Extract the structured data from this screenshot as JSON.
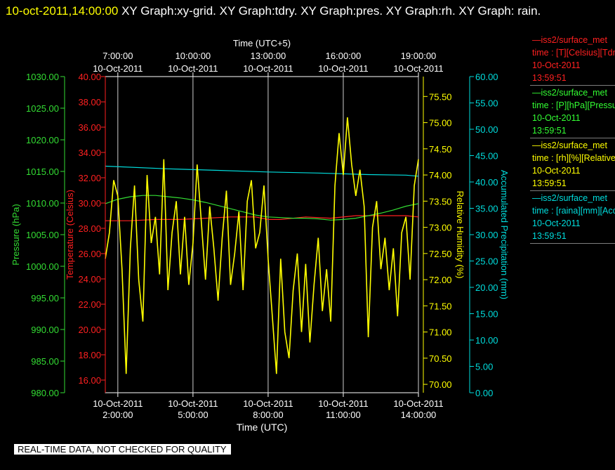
{
  "title": {
    "timestamp": "10-oct-2011,14:00:00",
    "text": " XY Graph:xy-grid.  XY Graph:tdry.  XY Graph:pres.  XY Graph:rh.  XY Graph: rain."
  },
  "legend": [
    {
      "line1": "—iss2/surface_met",
      "line2": "time : [T][Celsius][Tdry]",
      "line3": "10-Oct-2011",
      "line4": "13:59:51",
      "color": "#ff2020"
    },
    {
      "line1": "—iss2/surface_met",
      "line2": "time : [P][hPa][Pressure]",
      "line3": "10-Oct-2011",
      "line4": "13:59:51",
      "color": "#33ff33"
    },
    {
      "line1": "—iss2/surface_met",
      "line2": "time : [rh][%][Relative]",
      "line3": "10-Oct-2011",
      "line4": "13:59:51",
      "color": "#ffff00"
    },
    {
      "line1": "—iss2/surface_met",
      "line2": "time : [raina][mm][Accum]",
      "line3": "10-Oct-2011",
      "line4": "13:59:51",
      "color": "#00dddd"
    }
  ],
  "notice": "REAL-TIME DATA, NOT CHECKED FOR QUALITY",
  "chart_data": {
    "type": "line",
    "x_range_utc": [
      "10-Oct-2011 01:30:00",
      "10-Oct-2011 14:00:00"
    ],
    "grid": true,
    "bottom_axis": {
      "label": "Time (UTC)",
      "ticks": [
        {
          "date": "10-Oct-2011",
          "time": "2:00:00"
        },
        {
          "date": "10-Oct-2011",
          "time": "5:00:00"
        },
        {
          "date": "10-Oct-2011",
          "time": "8:00:00"
        },
        {
          "date": "10-Oct-2011",
          "time": "11:00:00"
        },
        {
          "date": "10-Oct-2011",
          "time": "14:00:00"
        }
      ]
    },
    "top_axis": {
      "label": "Time (UTC+5)",
      "ticks": [
        {
          "time": "7:00:00",
          "date": "10-Oct-2011"
        },
        {
          "time": "10:00:00",
          "date": "10-Oct-2011"
        },
        {
          "time": "13:00:00",
          "date": "10-Oct-2011"
        },
        {
          "time": "16:00:00",
          "date": "10-Oct-2011"
        },
        {
          "time": "19:00:00",
          "date": "10-Oct-2011"
        }
      ]
    },
    "y_axes": [
      {
        "id": "pres",
        "label": "Pressure (hPa)",
        "color": "#33dd33",
        "range": [
          980,
          1030
        ],
        "ticks": [
          "980.00",
          "985.00",
          "990.00",
          "995.00",
          "1000.00",
          "1005.00",
          "1010.00",
          "1015.00",
          "1020.00",
          "1025.00",
          "1030.00"
        ]
      },
      {
        "id": "tdry",
        "label": "Temperature (Celsius)",
        "color": "#ff2020",
        "range": [
          15,
          40
        ],
        "ticks": [
          "16.00",
          "18.00",
          "20.00",
          "22.00",
          "24.00",
          "26.00",
          "28.00",
          "30.00",
          "32.00",
          "34.00",
          "36.00",
          "38.00",
          "40.00"
        ]
      },
      {
        "id": "rh",
        "label": "Relative Humidity (%)",
        "color": "#ffff00",
        "range": [
          69.84,
          75.88
        ],
        "ticks": [
          "70.00",
          "70.50",
          "71.00",
          "71.50",
          "72.00",
          "72.50",
          "73.00",
          "73.50",
          "74.00",
          "74.50",
          "75.00",
          "75.50"
        ]
      },
      {
        "id": "rain",
        "label": "Accumulated Precipitation (mm)",
        "color": "#00dddd",
        "range": [
          0,
          60
        ],
        "ticks": [
          "0.00",
          "5.00",
          "10.00",
          "15.00",
          "20.00",
          "25.00",
          "30.00",
          "35.00",
          "40.00",
          "45.00",
          "50.00",
          "55.00",
          "60.00"
        ]
      }
    ],
    "series": [
      {
        "name": "Tdry",
        "axis": "tdry",
        "color": "#ff2020",
        "x": [
          "01:30",
          "02:30",
          "03:30",
          "04:30",
          "05:30",
          "06:30",
          "07:30",
          "08:00",
          "08:30",
          "09:30",
          "10:30",
          "11:30",
          "12:30",
          "13:30",
          "14:00"
        ],
        "y": [
          28.6,
          28.6,
          28.7,
          28.7,
          28.8,
          28.9,
          28.9,
          28.7,
          28.7,
          28.9,
          28.8,
          29.0,
          29.0,
          29.0,
          28.9
        ]
      },
      {
        "name": "Pressure",
        "axis": "pres",
        "color": "#33dd33",
        "x": [
          "01:30",
          "02:00",
          "02:30",
          "03:00",
          "03:30",
          "04:00",
          "04:30",
          "05:00",
          "05:30",
          "06:00",
          "06:30",
          "07:00",
          "07:30",
          "08:00",
          "08:30",
          "09:00",
          "09:30",
          "10:00",
          "10:30",
          "11:00",
          "11:30",
          "12:00",
          "12:30",
          "13:00",
          "13:30",
          "14:00"
        ],
        "y": [
          1009.9,
          1010.6,
          1011.0,
          1011.2,
          1011.2,
          1011.0,
          1010.8,
          1010.5,
          1010.1,
          1009.6,
          1009.1,
          1008.6,
          1008.1,
          1007.8,
          1007.7,
          1007.6,
          1007.6,
          1007.5,
          1007.3,
          1007.4,
          1007.6,
          1008.0,
          1008.4,
          1008.9,
          1009.5,
          1009.9
        ]
      },
      {
        "name": "Accumulated Precipitation",
        "axis": "rain",
        "color": "#00dddd",
        "x": [
          "01:30",
          "04:00",
          "06:00",
          "08:00",
          "10:00",
          "12:00",
          "13:30",
          "14:00"
        ],
        "y": [
          43.0,
          42.5,
          42.2,
          41.9,
          41.7,
          41.4,
          41.3,
          41.1
        ]
      },
      {
        "name": "Relative Humidity",
        "axis": "rh",
        "color": "#ffff00",
        "x": [
          "01:30",
          "01:40",
          "01:50",
          "02:00",
          "02:10",
          "02:20",
          "02:30",
          "02:40",
          "02:50",
          "03:00",
          "03:10",
          "03:20",
          "03:30",
          "03:40",
          "03:50",
          "04:00",
          "04:10",
          "04:20",
          "04:30",
          "04:40",
          "04:50",
          "05:00",
          "05:10",
          "05:20",
          "05:30",
          "05:40",
          "05:50",
          "06:00",
          "06:10",
          "06:20",
          "06:30",
          "06:40",
          "06:50",
          "07:00",
          "07:10",
          "07:20",
          "07:30",
          "07:40",
          "07:50",
          "08:00",
          "08:10",
          "08:20",
          "08:30",
          "08:40",
          "08:50",
          "09:00",
          "09:10",
          "09:20",
          "09:30",
          "09:40",
          "09:50",
          "10:00",
          "10:10",
          "10:20",
          "10:30",
          "10:40",
          "10:50",
          "11:00",
          "11:10",
          "11:20",
          "11:30",
          "11:40",
          "11:50",
          "12:00",
          "12:10",
          "12:20",
          "12:30",
          "12:40",
          "12:50",
          "13:00",
          "13:10",
          "13:20",
          "13:30",
          "13:40",
          "13:50",
          "14:00"
        ],
        "y": [
          72.4,
          72.9,
          73.9,
          73.6,
          72.2,
          70.2,
          72.6,
          73.8,
          72.0,
          71.2,
          74.0,
          72.7,
          73.2,
          72.1,
          74.3,
          71.8,
          72.9,
          73.5,
          72.1,
          73.2,
          71.9,
          72.7,
          74.2,
          73.1,
          72.0,
          73.4,
          72.6,
          71.6,
          72.8,
          73.7,
          71.9,
          72.5,
          73.3,
          71.8,
          73.5,
          73.9,
          72.6,
          72.9,
          73.8,
          72.4,
          71.3,
          70.2,
          72.4,
          71.0,
          70.5,
          71.8,
          72.5,
          71.0,
          72.3,
          70.8,
          71.9,
          72.8,
          71.4,
          72.2,
          71.2,
          73.8,
          74.8,
          74.0,
          75.1,
          74.2,
          73.6,
          74.1,
          73.4,
          70.9,
          73.0,
          73.5,
          72.2,
          72.8,
          71.8,
          72.6,
          71.3,
          72.9,
          73.2,
          72.0,
          73.8,
          74.3
        ]
      }
    ]
  }
}
